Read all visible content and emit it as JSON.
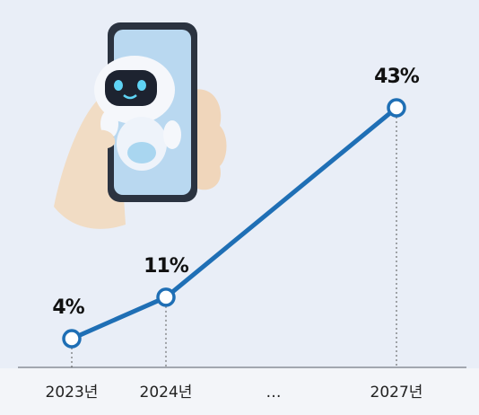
{
  "chart_data": {
    "type": "line",
    "categories": [
      "2023년",
      "2024년",
      "2027년"
    ],
    "values": [
      4,
      11,
      43
    ],
    "value_labels": [
      "4%",
      "11%",
      "43%"
    ],
    "color": "#1f6fb5",
    "ellipsis": "…"
  }
}
